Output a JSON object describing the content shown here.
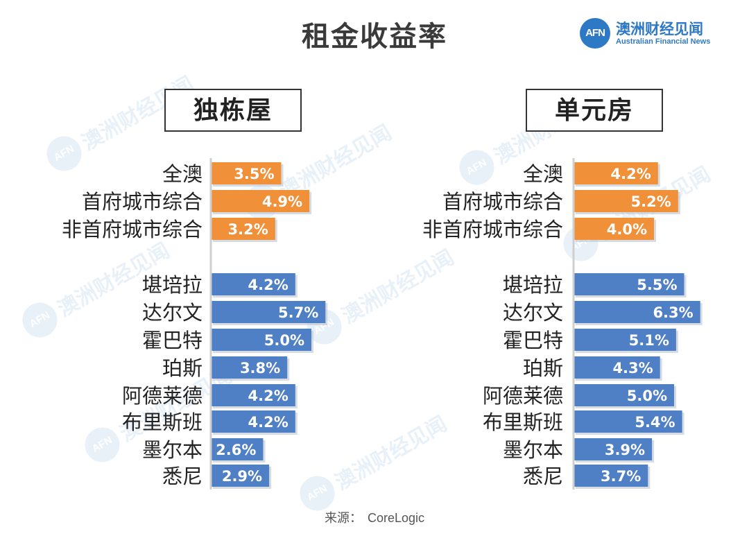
{
  "title": "租金收益率",
  "logo": {
    "badge": "AFN",
    "name_cn": "澳洲财经见闻",
    "name_en": "Australian Financial News"
  },
  "source": {
    "label": "来源：",
    "value": "CoreLogic"
  },
  "colors": {
    "summary": "#f0913a",
    "city": "#4f7fc4",
    "axis": "#cfcfcf",
    "label": "#222222"
  },
  "chart_data": [
    {
      "type": "bar",
      "orientation": "horizontal",
      "title": "独栋屋",
      "unit": "%",
      "categories": [
        "全澳",
        "首府城市综合",
        "非首府城市综合",
        "堪培拉",
        "达尔文",
        "霍巴特",
        "珀斯",
        "阿德莱德",
        "布里斯班",
        "墨尔本",
        "悉尼"
      ],
      "groups": [
        "summary",
        "summary",
        "summary",
        "city",
        "city",
        "city",
        "city",
        "city",
        "city",
        "city",
        "city"
      ],
      "values": [
        3.5,
        4.9,
        3.2,
        4.2,
        5.7,
        5.0,
        3.8,
        4.2,
        4.2,
        2.6,
        2.9
      ],
      "labels": [
        "3.5%",
        "4.9%",
        "3.2%",
        "4.2%",
        "5.7%",
        "5.0%",
        "3.8%",
        "4.2%",
        "4.2%",
        "2.6%",
        "2.9%"
      ]
    },
    {
      "type": "bar",
      "orientation": "horizontal",
      "title": "单元房",
      "unit": "%",
      "categories": [
        "全澳",
        "首府城市综合",
        "非首府城市综合",
        "堪培拉",
        "达尔文",
        "霍巴特",
        "珀斯",
        "阿德莱德",
        "布里斯班",
        "墨尔本",
        "悉尼"
      ],
      "groups": [
        "summary",
        "summary",
        "summary",
        "city",
        "city",
        "city",
        "city",
        "city",
        "city",
        "city",
        "city"
      ],
      "values": [
        4.2,
        5.2,
        4.0,
        5.5,
        6.3,
        5.1,
        4.3,
        5.0,
        5.4,
        3.9,
        3.7
      ],
      "labels": [
        "4.2%",
        "5.2%",
        "4.0%",
        "5.5%",
        "6.3%",
        "5.1%",
        "4.3%",
        "5.0%",
        "5.4%",
        "3.9%",
        "3.7%"
      ]
    }
  ]
}
